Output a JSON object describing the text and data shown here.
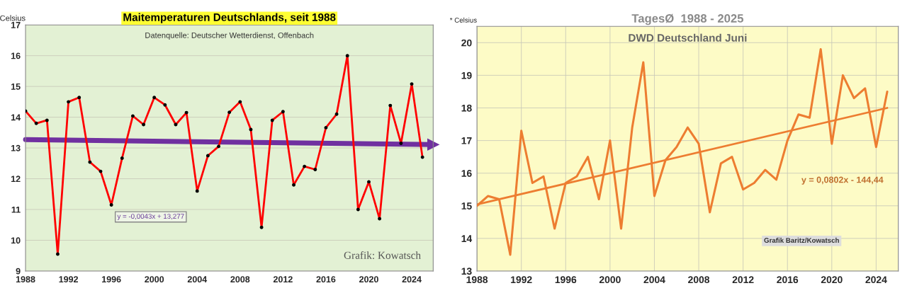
{
  "chart_data": [
    {
      "type": "line",
      "title": "Maitemperaturen Deutschlands, seit 1988",
      "subtitle": "Datenquelle: Deutscher Wetterdienst, Offenbach",
      "ylabel": "Celsius",
      "x": [
        1988,
        1989,
        1990,
        1991,
        1992,
        1993,
        1994,
        1995,
        1996,
        1997,
        1998,
        1999,
        2000,
        2001,
        2002,
        2003,
        2004,
        2005,
        2006,
        2007,
        2008,
        2009,
        2010,
        2011,
        2012,
        2013,
        2014,
        2015,
        2016,
        2017,
        2018,
        2019,
        2020,
        2021,
        2022,
        2023,
        2024,
        2025
      ],
      "series": [
        {
          "color": "#ff0000",
          "marker": "circle",
          "values": [
            14.2,
            13.8,
            13.9,
            9.55,
            14.5,
            14.64,
            12.54,
            12.24,
            11.15,
            12.67,
            14.04,
            13.76,
            14.64,
            14.4,
            13.76,
            14.15,
            11.6,
            12.75,
            13.05,
            14.16,
            14.5,
            13.6,
            10.42,
            13.9,
            14.18,
            11.8,
            12.4,
            12.3,
            13.66,
            14.1,
            16.0,
            11.0,
            11.9,
            10.7,
            14.38,
            13.15,
            15.08,
            12.7
          ]
        },
        {
          "type": "line",
          "color": "#7030a0",
          "x": [
            1988,
            2026
          ],
          "values": [
            13.27,
            13.11
          ]
        }
      ],
      "xlim": [
        1988,
        2026
      ],
      "xticks": [
        1988,
        1992,
        1996,
        2000,
        2004,
        2008,
        2012,
        2016,
        2020,
        2024
      ],
      "ylim": [
        9,
        17
      ],
      "yticks": [
        9,
        10,
        11,
        12,
        13,
        14,
        15,
        16,
        17
      ],
      "grid": "y",
      "annotations": [
        "y = -0,0043x + 13,277",
        "Grafik: Kowatsch"
      ]
    },
    {
      "type": "line",
      "title": "TagesØ  1988 - 2025",
      "subtitle": "DWD Deutschland Juni",
      "ylabel": "* Celsius",
      "x": [
        1988,
        1989,
        1990,
        1991,
        1992,
        1993,
        1994,
        1995,
        1996,
        1997,
        1998,
        1999,
        2000,
        2001,
        2002,
        2003,
        2004,
        2005,
        2006,
        2007,
        2008,
        2009,
        2010,
        2011,
        2012,
        2013,
        2014,
        2015,
        2016,
        2017,
        2018,
        2019,
        2020,
        2021,
        2022,
        2023,
        2024,
        2025
      ],
      "series": [
        {
          "color": "#ed7d31",
          "values": [
            15.0,
            15.3,
            15.2,
            13.5,
            17.3,
            15.7,
            15.9,
            14.3,
            15.7,
            15.9,
            16.5,
            15.2,
            17.0,
            14.3,
            17.4,
            19.4,
            15.3,
            16.4,
            16.8,
            17.4,
            16.9,
            14.8,
            16.3,
            16.5,
            15.5,
            15.7,
            16.1,
            15.8,
            17.0,
            17.8,
            17.7,
            19.8,
            16.9,
            19.0,
            18.3,
            18.6,
            16.8,
            18.5
          ]
        },
        {
          "type": "line",
          "color": "#ed7d31",
          "x": [
            1988,
            2025
          ],
          "values": [
            15.04,
            18.0
          ]
        }
      ],
      "xlim": [
        1988,
        2026
      ],
      "xticks": [
        1988,
        1992,
        1996,
        2000,
        2004,
        2008,
        2012,
        2016,
        2020,
        2024
      ],
      "ylim": [
        13,
        20.5
      ],
      "yticks": [
        13,
        14,
        15,
        16,
        17,
        18,
        19,
        20
      ],
      "grid": true,
      "annotations": [
        "y = 0,0802x - 144,44",
        "Grafik Baritz/Kowatsch"
      ]
    }
  ]
}
